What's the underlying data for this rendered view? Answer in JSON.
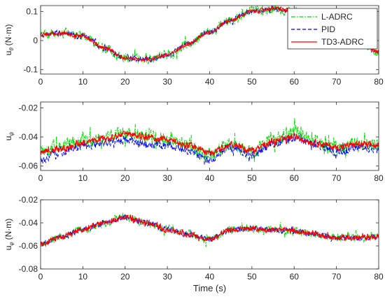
{
  "chart_data": [
    {
      "type": "line",
      "ylabel_main": "u",
      "ylabel_sub": "θ",
      "ylabel_unit": "(N·m)",
      "xlim": [
        0,
        80
      ],
      "ylim": [
        -0.115,
        0.12
      ],
      "xticks": [
        "0",
        "10",
        "20",
        "30",
        "40",
        "50",
        "60",
        "70",
        "80"
      ],
      "yticks": [
        {
          "v": 0.1,
          "label": "0.1"
        },
        {
          "v": 0,
          "label": "0"
        },
        {
          "v": -0.1,
          "label": "-0.1"
        }
      ],
      "legend": {
        "position": "top-right",
        "entries": [
          "L-ADRC",
          "PID",
          "TD3-ADRC"
        ]
      },
      "series": [
        {
          "name": "L-ADRC",
          "color": "#00dd00",
          "dash": "dashdot",
          "noise": 0.022,
          "x": [
            0,
            5,
            10,
            15,
            20,
            25,
            30,
            35,
            40,
            45,
            50,
            55,
            60,
            65,
            70,
            75,
            80
          ],
          "y": [
            0.02,
            0.025,
            0.015,
            -0.025,
            -0.06,
            -0.065,
            -0.05,
            -0.01,
            0.03,
            0.07,
            0.1,
            0.11,
            0.1,
            0.075,
            0.04,
            0.0,
            -0.04
          ]
        },
        {
          "name": "PID",
          "color": "#0000ff",
          "dash": "dashed",
          "noise": 0.012,
          "x": [
            0,
            5,
            10,
            15,
            20,
            25,
            30,
            35,
            40,
            45,
            50,
            55,
            60,
            65,
            70,
            75,
            80
          ],
          "y": [
            0.02,
            0.025,
            0.015,
            -0.025,
            -0.06,
            -0.065,
            -0.05,
            -0.01,
            0.03,
            0.07,
            0.1,
            0.11,
            0.1,
            0.075,
            0.04,
            0.0,
            -0.04
          ]
        },
        {
          "name": "TD3-ADRC",
          "color": "#ff0000",
          "dash": "solid",
          "noise": 0.009,
          "x": [
            0,
            5,
            10,
            15,
            20,
            25,
            30,
            35,
            40,
            45,
            50,
            55,
            60,
            65,
            70,
            75,
            80
          ],
          "y": [
            0.02,
            0.025,
            0.015,
            -0.025,
            -0.06,
            -0.065,
            -0.05,
            -0.01,
            0.03,
            0.07,
            0.1,
            0.11,
            0.1,
            0.075,
            0.04,
            0.0,
            -0.04
          ]
        }
      ]
    },
    {
      "type": "line",
      "ylabel_main": "u",
      "ylabel_sub": "ψ",
      "ylabel_unit": "",
      "xlim": [
        0,
        80
      ],
      "ylim": [
        -0.063,
        -0.016
      ],
      "xticks": [
        "0",
        "10",
        "20",
        "30",
        "40",
        "50",
        "60",
        "70",
        "80"
      ],
      "yticks": [
        {
          "v": -0.02,
          "label": "-0.02"
        },
        {
          "v": -0.04,
          "label": "-0.04"
        },
        {
          "v": -0.06,
          "label": "-0.06"
        }
      ],
      "series": [
        {
          "name": "L-ADRC",
          "color": "#00dd00",
          "dash": "dashdot",
          "noise": 0.0065,
          "x": [
            0,
            5,
            10,
            15,
            20,
            25,
            30,
            35,
            40,
            45,
            50,
            55,
            60,
            65,
            70,
            75,
            80
          ],
          "y": [
            -0.05,
            -0.046,
            -0.042,
            -0.04,
            -0.038,
            -0.04,
            -0.042,
            -0.046,
            -0.053,
            -0.045,
            -0.05,
            -0.042,
            -0.036,
            -0.044,
            -0.048,
            -0.045,
            -0.046
          ]
        },
        {
          "name": "PID",
          "color": "#0000ff",
          "dash": "dashed",
          "noise": 0.004,
          "x": [
            0,
            5,
            10,
            15,
            20,
            25,
            30,
            35,
            40,
            45,
            50,
            55,
            60,
            65,
            70,
            75,
            80
          ],
          "y": [
            -0.055,
            -0.05,
            -0.046,
            -0.044,
            -0.042,
            -0.045,
            -0.046,
            -0.049,
            -0.056,
            -0.047,
            -0.052,
            -0.045,
            -0.041,
            -0.045,
            -0.05,
            -0.047,
            -0.048
          ]
        },
        {
          "name": "TD3-ADRC",
          "color": "#ff0000",
          "dash": "solid",
          "noise": 0.003,
          "x": [
            0,
            5,
            10,
            15,
            20,
            25,
            30,
            35,
            40,
            45,
            50,
            55,
            60,
            65,
            70,
            75,
            80
          ],
          "y": [
            -0.05,
            -0.048,
            -0.044,
            -0.041,
            -0.038,
            -0.04,
            -0.042,
            -0.046,
            -0.051,
            -0.045,
            -0.049,
            -0.043,
            -0.04,
            -0.044,
            -0.047,
            -0.045,
            -0.046
          ]
        }
      ]
    },
    {
      "type": "line",
      "ylabel_main": "u",
      "ylabel_sub": "φ",
      "ylabel_unit": "(N·m)",
      "xlim": [
        0,
        80
      ],
      "ylim": [
        -0.08,
        -0.02
      ],
      "xticks": [
        "0",
        "10",
        "20",
        "30",
        "40",
        "50",
        "60",
        "70",
        "80"
      ],
      "xlabel": "Time (s)",
      "yticks": [
        {
          "v": -0.02,
          "label": "-0.02"
        },
        {
          "v": -0.04,
          "label": "-0.04"
        },
        {
          "v": -0.06,
          "label": "-0.06"
        },
        {
          "v": -0.08,
          "label": "-0.08"
        }
      ],
      "series": [
        {
          "name": "L-ADRC",
          "color": "#00dd00",
          "dash": "dashdot",
          "noise": 0.0045,
          "x": [
            0,
            5,
            10,
            15,
            20,
            25,
            30,
            35,
            40,
            45,
            50,
            55,
            60,
            65,
            70,
            75,
            80
          ],
          "y": [
            -0.058,
            -0.052,
            -0.046,
            -0.04,
            -0.035,
            -0.04,
            -0.046,
            -0.05,
            -0.054,
            -0.046,
            -0.045,
            -0.046,
            -0.047,
            -0.05,
            -0.053,
            -0.053,
            -0.052
          ]
        },
        {
          "name": "PID",
          "color": "#0000ff",
          "dash": "dashed",
          "noise": 0.003,
          "x": [
            0,
            5,
            10,
            15,
            20,
            25,
            30,
            35,
            40,
            45,
            50,
            55,
            60,
            65,
            70,
            75,
            80
          ],
          "y": [
            -0.058,
            -0.052,
            -0.046,
            -0.04,
            -0.035,
            -0.04,
            -0.046,
            -0.05,
            -0.054,
            -0.046,
            -0.045,
            -0.046,
            -0.047,
            -0.05,
            -0.053,
            -0.053,
            -0.052
          ]
        },
        {
          "name": "TD3-ADRC",
          "color": "#ff0000",
          "dash": "solid",
          "noise": 0.003,
          "x": [
            0,
            5,
            10,
            15,
            20,
            25,
            30,
            35,
            40,
            45,
            50,
            55,
            60,
            65,
            70,
            75,
            80
          ],
          "y": [
            -0.058,
            -0.052,
            -0.046,
            -0.04,
            -0.035,
            -0.04,
            -0.046,
            -0.05,
            -0.054,
            -0.046,
            -0.045,
            -0.046,
            -0.047,
            -0.05,
            -0.053,
            -0.053,
            -0.052
          ]
        }
      ]
    }
  ]
}
